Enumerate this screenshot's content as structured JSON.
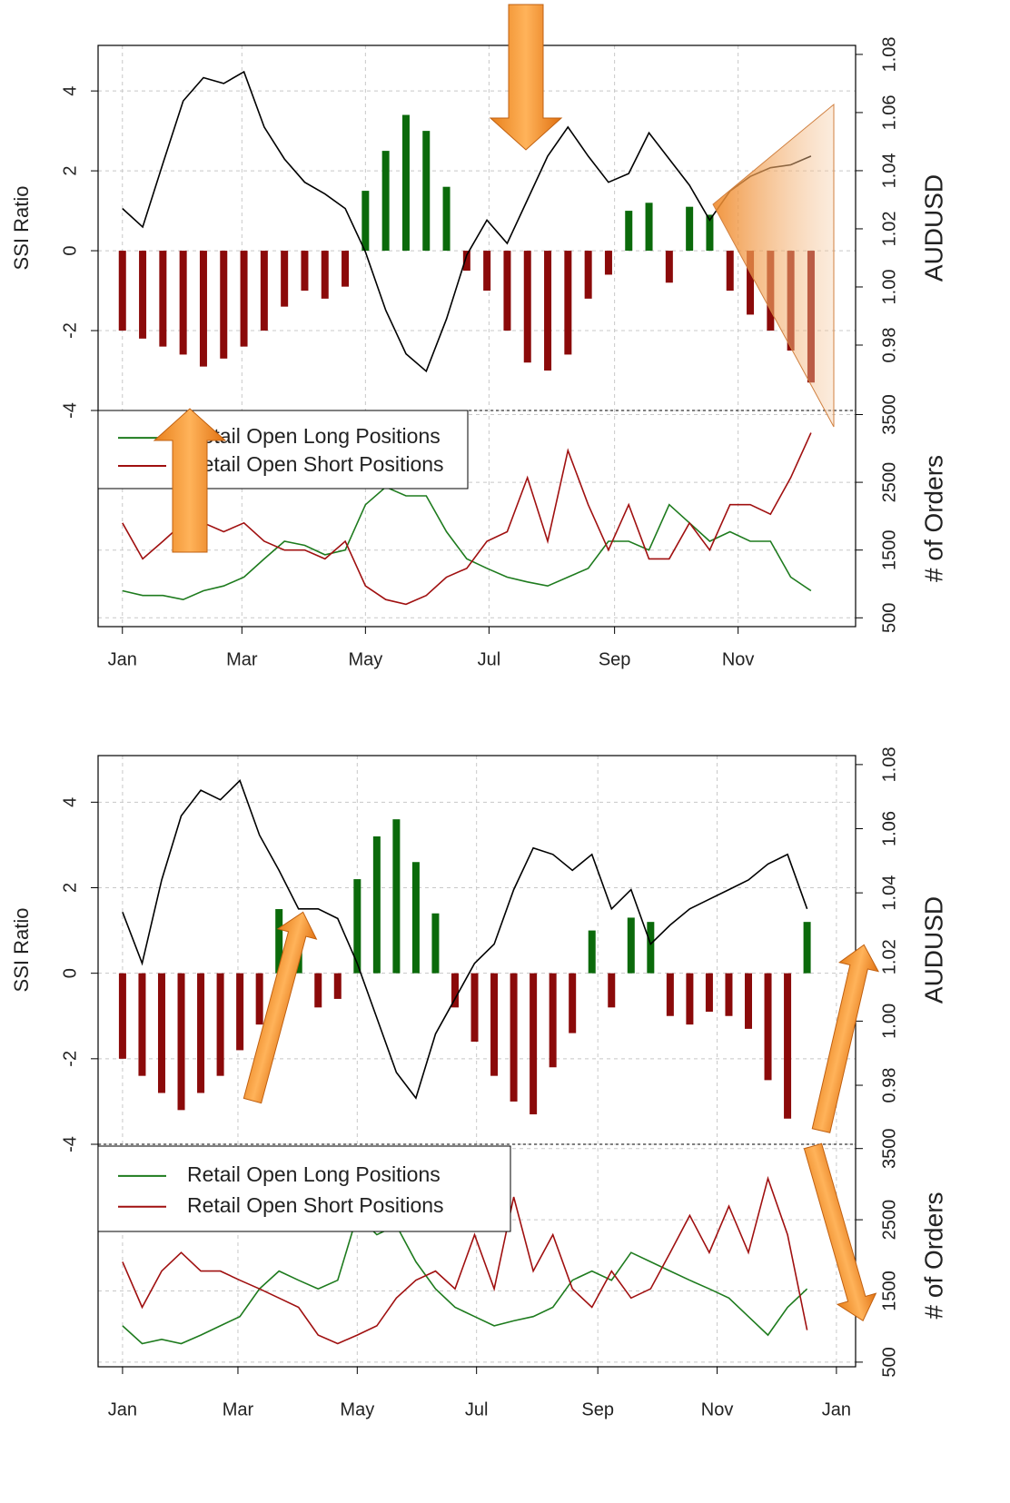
{
  "chart_data": [
    {
      "type": "ssi",
      "ylabel": "SSI Ratio",
      "y2label": "AUDUSD",
      "y3label": "# of Orders",
      "grid": true,
      "legend": "top-left",
      "x": [
        0,
        10,
        20,
        30,
        40,
        50,
        60,
        70,
        80,
        90,
        100,
        110,
        120,
        130,
        140,
        150,
        160,
        170,
        180,
        190,
        200,
        210,
        220,
        230,
        240,
        250,
        260,
        270,
        280,
        290,
        300,
        310,
        320,
        330,
        340
      ],
      "xlim": [
        -12,
        362
      ],
      "xticks": [
        {
          "value": 0,
          "label": "Jan"
        },
        {
          "value": 59,
          "label": "Mar"
        },
        {
          "value": 120,
          "label": "May"
        },
        {
          "value": 181,
          "label": "Jul"
        },
        {
          "value": 243,
          "label": "Sep"
        },
        {
          "value": 304,
          "label": "Nov"
        }
      ],
      "ylim": [
        -4,
        5.14
      ],
      "yticks": [
        -4,
        -2,
        0,
        2,
        4
      ],
      "y2lim": [
        0.9575,
        1.0831
      ],
      "y2ticks": [
        0.98,
        {
          "value": 1.0,
          "label": "1.00"
        },
        1.02,
        1.04,
        1.06,
        1.08
      ],
      "y3lim": [
        370,
        3560
      ],
      "y3ticks": [
        500,
        1500,
        2500,
        3500
      ],
      "series": [
        {
          "positive_color": "#0b6a0b",
          "negative_color": "#8b0a0a",
          "values": [
            -2.0,
            -2.2,
            -2.4,
            -2.6,
            -2.9,
            -2.7,
            -2.4,
            -2.0,
            -1.4,
            -1.0,
            -1.2,
            -0.9,
            1.5,
            2.5,
            3.4,
            3.0,
            1.6,
            -0.5,
            -1.0,
            -2.0,
            -2.8,
            -3.0,
            -2.6,
            -1.2,
            -0.6,
            1.0,
            1.2,
            -0.8,
            1.1,
            0.9,
            -1.0,
            -1.6,
            -2.0,
            -2.5,
            -3.3
          ]
        },
        {
          "color": "#000000",
          "axis": "y2",
          "values": [
            1.027,
            1.0206,
            1.0425,
            1.064,
            1.072,
            1.07,
            1.074,
            1.055,
            1.044,
            1.036,
            1.032,
            1.027,
            1.012,
            0.992,
            0.977,
            0.971,
            0.989,
            1.011,
            1.023,
            1.015,
            1.03,
            1.045,
            1.055,
            1.045,
            1.036,
            1.039,
            1.053,
            1.044,
            1.035,
            1.023,
            1.033,
            1.038,
            1.041,
            1.042,
            1.045
          ]
        },
        {
          "name": "Retail Open Long Positions",
          "color": "#1e7b1e",
          "axis": "y3",
          "values": [
            900,
            830,
            830,
            770,
            900,
            970,
            1100,
            1370,
            1630,
            1570,
            1430,
            1500,
            2170,
            2430,
            2300,
            2300,
            1770,
            1370,
            1230,
            1100,
            1030,
            970,
            1100,
            1230,
            1630,
            1630,
            1500,
            2170,
            1900,
            1630,
            1770,
            1630,
            1630,
            1100,
            900
          ]
        },
        {
          "name": "Retail Open Short Positions",
          "color": "#a01010",
          "axis": "y3",
          "values": [
            1900,
            1370,
            1630,
            1900,
            1900,
            1770,
            1900,
            1630,
            1500,
            1500,
            1370,
            1630,
            970,
            770,
            700,
            830,
            1100,
            1230,
            1630,
            1770,
            2570,
            1630,
            2970,
            2170,
            1500,
            2170,
            1370,
            1370,
            1900,
            1500,
            2170,
            2170,
            2030,
            2570,
            3230
          ]
        }
      ]
    },
    {
      "type": "ssi",
      "ylabel": "SSI Ratio",
      "y2label": "AUDUSD",
      "y3label": "# of Orders",
      "grid": true,
      "legend": "top-left",
      "x": [
        0,
        10,
        20,
        30,
        40,
        50,
        60,
        70,
        80,
        90,
        100,
        110,
        120,
        130,
        140,
        150,
        160,
        170,
        180,
        190,
        200,
        210,
        220,
        230,
        240,
        250,
        260,
        270,
        280,
        290,
        300,
        310,
        320,
        330,
        340,
        350
      ],
      "xlim": [
        -12.5,
        374.8
      ],
      "xticks": [
        {
          "value": 0,
          "label": "Jan"
        },
        {
          "value": 59,
          "label": "Mar"
        },
        {
          "value": 120,
          "label": "May"
        },
        {
          "value": 181,
          "label": "Jul"
        },
        {
          "value": 243,
          "label": "Sep"
        },
        {
          "value": 304,
          "label": "Nov"
        },
        {
          "value": 365,
          "label": "Jan"
        }
      ],
      "ylim": [
        -4,
        5.09
      ],
      "yticks": [
        -4,
        -2,
        0,
        2,
        4
      ],
      "y2lim": [
        0.9616,
        1.0828
      ],
      "y2ticks": [
        0.98,
        {
          "value": 1.0,
          "label": "1.00"
        },
        1.02,
        1.04,
        1.06,
        1.08
      ],
      "y3lim": [
        435,
        3560
      ],
      "y3ticks": [
        500,
        1500,
        2500,
        3500
      ],
      "series": [
        {
          "positive_color": "#0b6a0b",
          "negative_color": "#8b0a0a",
          "values": [
            -2.0,
            -2.4,
            -2.8,
            -3.2,
            -2.8,
            -2.4,
            -1.8,
            -1.2,
            1.5,
            1.2,
            -0.8,
            -0.6,
            2.2,
            3.2,
            3.6,
            2.6,
            1.4,
            -0.8,
            -1.6,
            -2.4,
            -3.0,
            -3.3,
            -2.2,
            -1.4,
            1.0,
            -0.8,
            1.3,
            1.2,
            -1.0,
            -1.2,
            -0.9,
            -1.0,
            -1.3,
            -2.5,
            -3.4,
            1.2
          ]
        },
        {
          "color": "#000000",
          "axis": "y2",
          "values": [
            1.034,
            1.018,
            1.044,
            1.064,
            1.072,
            1.069,
            1.075,
            1.058,
            1.047,
            1.035,
            1.035,
            1.032,
            1.018,
            1.001,
            0.984,
            0.976,
            0.996,
            1.007,
            1.018,
            1.024,
            1.041,
            1.054,
            1.052,
            1.047,
            1.052,
            1.035,
            1.041,
            1.024,
            1.03,
            1.035,
            1.038,
            1.041,
            1.044,
            1.049,
            1.052,
            1.035
          ]
        },
        {
          "name": "Retail Open Long Positions",
          "color": "#1e7b1e",
          "axis": "y3",
          "values": [
            1010,
            760,
            820,
            760,
            880,
            1010,
            1140,
            1530,
            1780,
            1650,
            1530,
            1650,
            2560,
            2290,
            2420,
            1910,
            1530,
            1270,
            1140,
            1010,
            1080,
            1140,
            1270,
            1650,
            1780,
            1650,
            2040,
            1910,
            1780,
            1650,
            1530,
            1400,
            1140,
            880,
            1270,
            1530
          ]
        },
        {
          "name": "Retail Open Short Positions",
          "color": "#a01010",
          "axis": "y3",
          "values": [
            1910,
            1270,
            1780,
            2040,
            1780,
            1780,
            1650,
            1530,
            1400,
            1270,
            880,
            760,
            880,
            1010,
            1400,
            1650,
            1780,
            1530,
            2290,
            1530,
            2820,
            1780,
            2290,
            1530,
            1270,
            1780,
            1400,
            1530,
            2040,
            2560,
            2040,
            2690,
            2040,
            3080,
            2290,
            950
          ]
        }
      ]
    }
  ]
}
